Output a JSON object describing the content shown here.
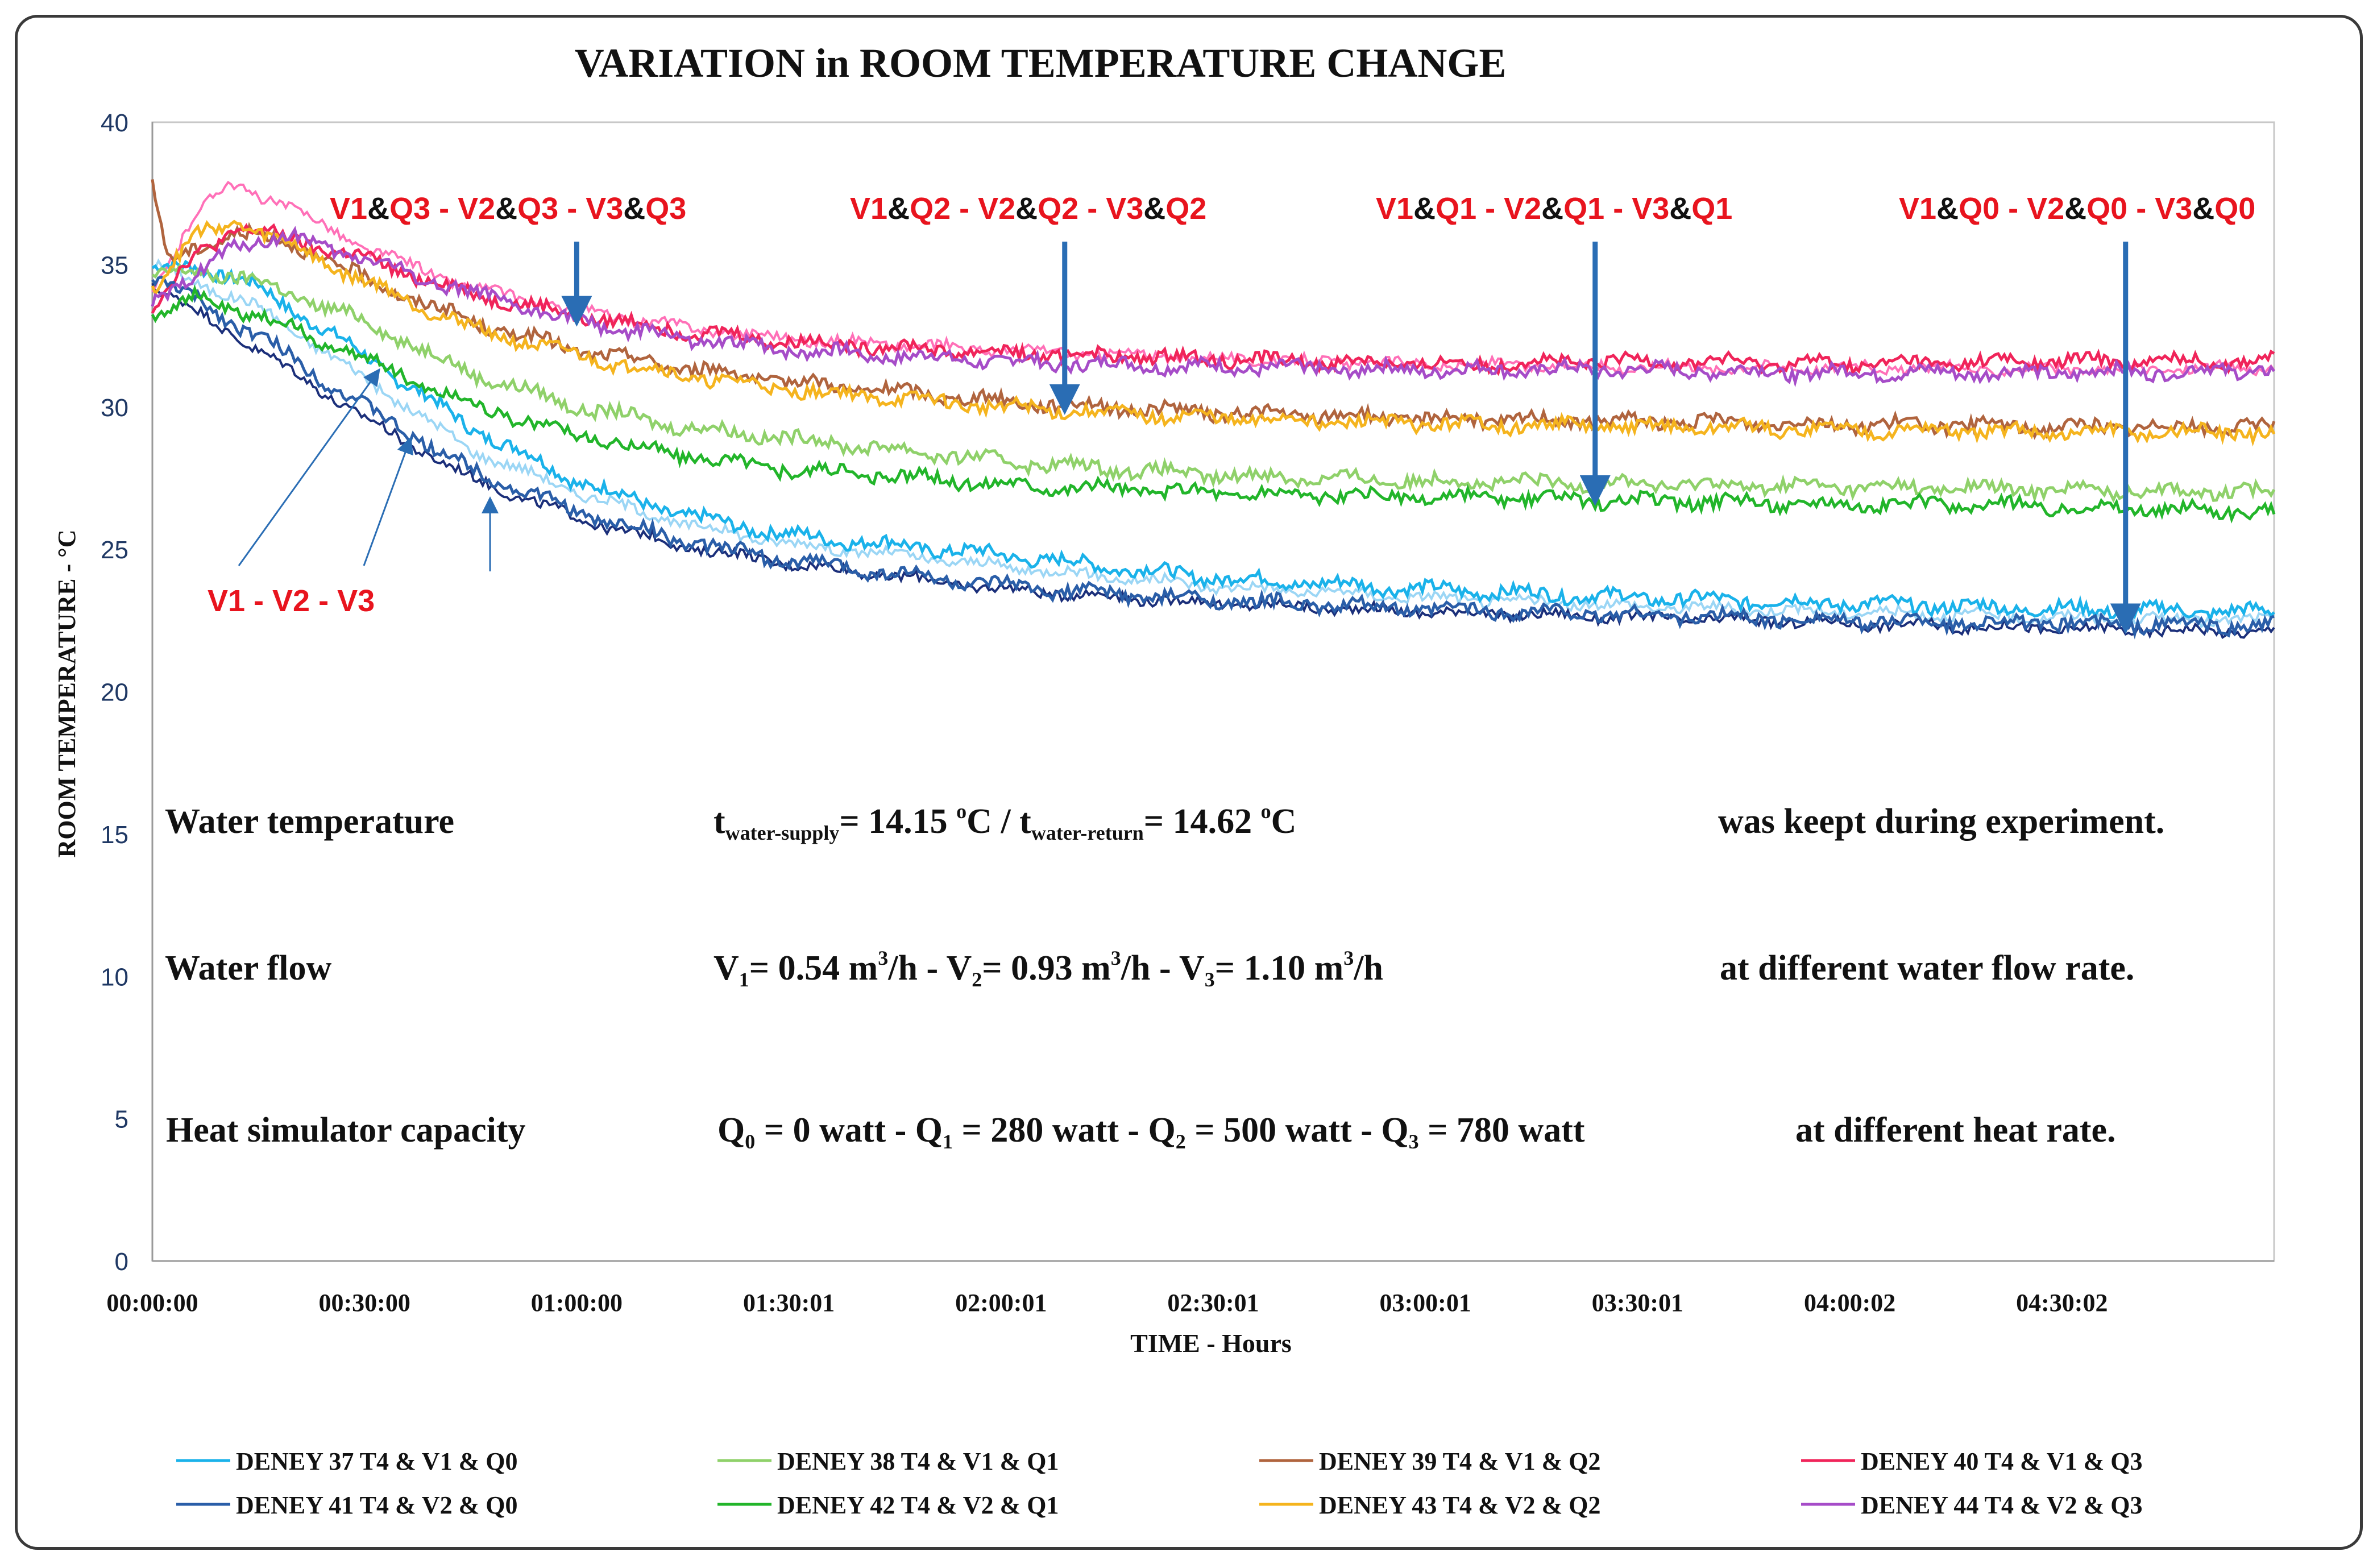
{
  "chart_data": {
    "type": "line",
    "title": "VARIATION in ROOM TEMPERATURE CHANGE",
    "xlabel": "TIME - Hours",
    "ylabel": "ROOM TEMPERATURE - °C",
    "ylim": [
      0,
      40
    ],
    "xlim_hours": [
      0,
      5.0
    ],
    "yticks": [
      0,
      5,
      10,
      15,
      20,
      25,
      30,
      35,
      40
    ],
    "xticks": [
      {
        "hours": 0,
        "label": "00:00:00"
      },
      {
        "hours": 0.5,
        "label": "00:30:00"
      },
      {
        "hours": 1.0,
        "label": "01:00:00"
      },
      {
        "hours": 1.5,
        "label": "01:30:01"
      },
      {
        "hours": 2.0,
        "label": "02:00:01"
      },
      {
        "hours": 2.5,
        "label": "02:30:01"
      },
      {
        "hours": 3.0,
        "label": "03:00:01"
      },
      {
        "hours": 3.5,
        "label": "03:30:01"
      },
      {
        "hours": 4.0,
        "label": "04:00:02"
      },
      {
        "hours": 4.5,
        "label": "04:30:02"
      }
    ],
    "series": [
      {
        "name": "DENEY 37 T4 & V1 & Q0",
        "color": "#1ab2ea",
        "x": [
          0,
          0.1,
          0.25,
          0.5,
          0.75,
          1.0,
          1.25,
          1.5,
          2.0,
          2.5,
          3.0,
          3.5,
          4.0,
          4.5,
          5.0
        ],
        "y": [
          34.8,
          35.0,
          34.2,
          31.8,
          29.3,
          27.4,
          26.2,
          25.5,
          24.8,
          24.0,
          23.6,
          23.3,
          23.1,
          22.9,
          22.8
        ]
      },
      {
        "name": "DENEY 38 T4 & V1 & Q1",
        "color": "#8fd16a",
        "x": [
          0,
          0.1,
          0.25,
          0.5,
          0.75,
          1.0,
          1.25,
          1.5,
          2.0,
          2.5,
          3.0,
          3.5,
          4.0,
          4.5,
          5.0
        ],
        "y": [
          34.5,
          34.8,
          34.4,
          33.0,
          31.2,
          30.0,
          29.3,
          28.9,
          28.1,
          27.6,
          27.4,
          27.3,
          27.2,
          27.1,
          27.0
        ]
      },
      {
        "name": "DENEY 39 T4 & V1 & Q2",
        "color": "#b0643e",
        "x": [
          0,
          0.04,
          0.1,
          0.2,
          0.35,
          0.5,
          0.75,
          1.0,
          1.25,
          1.5,
          2.0,
          2.5,
          3.0,
          3.5,
          4.0,
          4.5,
          5.0
        ],
        "y": [
          37.8,
          35.0,
          35.5,
          36.2,
          35.6,
          34.5,
          33.0,
          32.0,
          31.4,
          30.9,
          30.2,
          29.8,
          29.6,
          29.5,
          29.4,
          29.3,
          29.3
        ]
      },
      {
        "name": "DENEY 40 T4 & V1 & Q3",
        "color": "#f0245a",
        "x": [
          0,
          0.1,
          0.2,
          0.35,
          0.5,
          0.75,
          1.0,
          1.25,
          1.5,
          2.0,
          2.5,
          3.0,
          3.5,
          4.0,
          4.5,
          5.0
        ],
        "y": [
          33.5,
          35.3,
          36.3,
          35.8,
          35.2,
          34.0,
          33.2,
          32.7,
          32.3,
          31.9,
          31.7,
          31.5,
          31.6,
          31.5,
          31.6,
          31.6
        ]
      },
      {
        "name": "DENEY 41 T4 & V2 & Q0",
        "color": "#2a5ea8",
        "x": [
          0,
          0.25,
          0.5,
          0.75,
          1.0,
          1.25,
          1.5,
          2.0,
          2.5,
          3.0,
          3.5,
          4.0,
          4.5,
          5.0
        ],
        "y": [
          34.6,
          32.5,
          30.0,
          27.8,
          26.3,
          25.3,
          24.6,
          23.7,
          23.2,
          22.9,
          22.7,
          22.5,
          22.4,
          22.3
        ]
      },
      {
        "name": "DENEY 42 T4 & V2 & Q1",
        "color": "#22b52a",
        "x": [
          0,
          0.1,
          0.25,
          0.5,
          0.75,
          1.0,
          1.25,
          1.5,
          2.0,
          2.5,
          3.0,
          3.5,
          4.0,
          4.5,
          5.0
        ],
        "y": [
          33.3,
          33.8,
          33.2,
          31.7,
          30.1,
          29.0,
          28.3,
          27.8,
          27.3,
          27.0,
          26.8,
          26.7,
          26.6,
          26.5,
          26.3
        ]
      },
      {
        "name": "DENEY 43 T4 & V2 & Q2",
        "color": "#f5b41e",
        "x": [
          0,
          0.1,
          0.2,
          0.35,
          0.5,
          0.75,
          1.0,
          1.25,
          1.5,
          2.0,
          2.5,
          3.0,
          3.5,
          4.0,
          4.5,
          5.0
        ],
        "y": [
          34.2,
          36.0,
          36.5,
          35.5,
          34.4,
          32.8,
          31.8,
          31.1,
          30.6,
          30.0,
          29.6,
          29.4,
          29.3,
          29.2,
          29.1,
          29.1
        ]
      },
      {
        "name": "DENEY 44 T4 & V2 & Q3",
        "color": "#a64cc8",
        "x": [
          0,
          0.1,
          0.2,
          0.35,
          0.5,
          0.75,
          1.0,
          1.25,
          1.5,
          2.0,
          2.5,
          3.0,
          3.5,
          4.0,
          4.5,
          5.0
        ],
        "y": [
          33.8,
          34.5,
          35.8,
          35.9,
          35.2,
          34.0,
          33.0,
          32.4,
          32.0,
          31.6,
          31.4,
          31.3,
          31.3,
          31.2,
          31.2,
          31.3
        ]
      }
    ],
    "extra_lines": [
      {
        "color": "#9bd6f5",
        "x": [
          0,
          0.25,
          0.5,
          0.75,
          1.0,
          1.25,
          1.5,
          2.0,
          2.5,
          3.0,
          3.5,
          4.0,
          4.5,
          5.0
        ],
        "y": [
          35.0,
          33.5,
          31.0,
          28.5,
          27.0,
          25.9,
          25.2,
          24.4,
          23.7,
          23.3,
          23.0,
          22.8,
          22.6,
          22.5
        ]
      },
      {
        "color": "#1b2f7a",
        "x": [
          0,
          0.25,
          0.5,
          0.75,
          1.0,
          1.25,
          1.5,
          2.0,
          2.5,
          3.0,
          3.5,
          4.0,
          4.5,
          5.0
        ],
        "y": [
          34.3,
          32.0,
          29.6,
          27.5,
          26.1,
          25.1,
          24.5,
          23.6,
          23.1,
          22.8,
          22.6,
          22.4,
          22.2,
          22.1
        ]
      },
      {
        "color": "#ff70b8",
        "x": [
          0,
          0.1,
          0.18,
          0.3,
          0.5,
          0.75,
          1.0,
          1.25,
          1.5,
          2.0,
          2.5,
          3.0,
          3.5,
          4.0,
          4.5,
          5.0
        ],
        "y": [
          34.0,
          36.8,
          37.8,
          37.2,
          35.6,
          34.2,
          33.4,
          32.8,
          32.4,
          32.0,
          31.7,
          31.5,
          31.4,
          31.4,
          31.3,
          31.4
        ]
      }
    ],
    "annotations": {
      "group_labels": [
        {
          "id": "q3",
          "parts": [
            "V1",
            "&",
            "Q3",
            " - V2",
            "&",
            "Q3",
            " - V3",
            "&",
            "Q3"
          ],
          "arrow_x_hours": 1.0,
          "arrow_to_y": 33.0
        },
        {
          "id": "q2",
          "parts": [
            "V1",
            "&",
            "Q2",
            " - V2",
            "&",
            "Q2",
            " - V3",
            "&",
            "Q2"
          ],
          "arrow_x_hours": 2.15,
          "arrow_to_y": 29.9
        },
        {
          "id": "q1",
          "parts": [
            "V1",
            "&",
            "Q1",
            " - V2",
            "&",
            "Q1",
            " - V3",
            "&",
            "Q1"
          ],
          "arrow_x_hours": 3.4,
          "arrow_to_y": 26.7
        },
        {
          "id": "q0",
          "parts": [
            "V1",
            "&",
            "Q0",
            " - V2",
            "&",
            "Q0",
            " - V3",
            "&",
            "Q0"
          ],
          "arrow_x_hours": 4.65,
          "arrow_to_y": 22.2
        }
      ],
      "v_labels": {
        "text": "V1   -   V2   -   V3"
      },
      "notes": [
        {
          "label": "Water temperature",
          "middle": "t_water-supply = 14.15 °C  /  t_water-return = 14.62 °C",
          "right": "was keept during experiment.",
          "y": 15
        },
        {
          "label": "Water flow",
          "middle": "V1 = 0.54 m3/h - V2 = 0.93 m3/h - V3 = 1.10 m3/h",
          "right": "at different water flow rate.",
          "y": 10
        },
        {
          "label": "Heat simulator capacity",
          "middle": "Q0 = 0 watt - Q1 = 280 watt - Q2 = 500 watt - Q3 = 780 watt",
          "right": "at different heat rate.",
          "y": 5
        }
      ]
    },
    "legend": {
      "placement": "bottom",
      "columns": 4
    }
  },
  "colors": {
    "axis_label": "#1f3864",
    "annotation_red": "#e8141e",
    "arrow_blue": "#2a6db4",
    "text_black": "#111111"
  }
}
